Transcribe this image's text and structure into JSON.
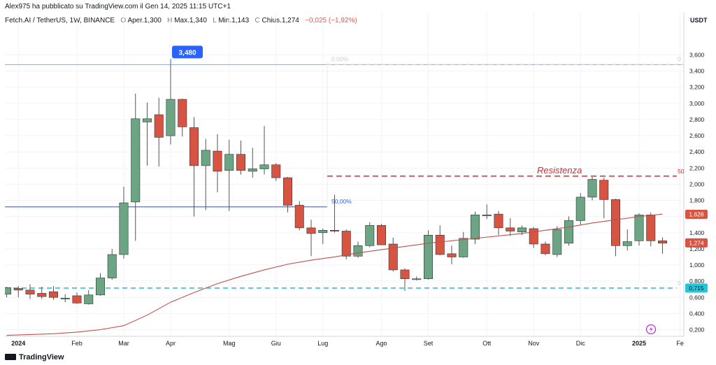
{
  "header": {
    "published": "Alex975 ha pubblicato su TradingView.com il Gen 14, 2025 11:15 UTC+1",
    "symbol": "Fetch.AI / TetherUS, 1W, BINANCE",
    "open_label": "O",
    "open_value": "Aper.1,300",
    "high_label": "H",
    "high_value": "Max.1,340",
    "low_label": "L",
    "low_value": "Min.1,143",
    "close_label": "C",
    "close_value": "Chius.1,274",
    "change": "−0,025 (−1,92%)"
  },
  "footer": {
    "brand": "TradingView"
  },
  "colors": {
    "up": "#6ba583",
    "down": "#d75442",
    "ma": "#c0504d",
    "fib": "#2962ff",
    "resistance": "#d32f2f",
    "support": "#26c6da"
  },
  "chart_data": {
    "type": "candlestick",
    "currency": "USDT",
    "x_labels": [
      {
        "label": "2024",
        "index": 1
      },
      {
        "label": "Feb",
        "index": 6
      },
      {
        "label": "Mar",
        "index": 10
      },
      {
        "label": "Apr",
        "index": 14
      },
      {
        "label": "Mag",
        "index": 19
      },
      {
        "label": "Giu",
        "index": 23
      },
      {
        "label": "Lug",
        "index": 27
      },
      {
        "label": "Ago",
        "index": 32
      },
      {
        "label": "Set",
        "index": 36
      },
      {
        "label": "Ott",
        "index": 41
      },
      {
        "label": "Nov",
        "index": 45
      },
      {
        "label": "Dic",
        "index": 49
      },
      {
        "label": "2025",
        "index": 54
      },
      {
        "label": "Fe",
        "index": 57.5
      }
    ],
    "y_ticks": [
      0.2,
      0.4,
      0.6,
      0.8,
      1.0,
      1.2,
      1.4,
      1.6,
      1.8,
      2.0,
      2.2,
      2.4,
      2.6,
      2.8,
      3.0,
      3.2,
      3.4,
      3.6
    ],
    "y_tick_labels": [
      "0,200",
      "0,400",
      "0,600",
      "0,800",
      "1,000",
      "1,200",
      "1,400",
      "1,600",
      "1,800",
      "2,000",
      "2,200",
      "2,400",
      "2,600",
      "2,800",
      "3,000",
      "3,200",
      "3,400",
      "3,600"
    ],
    "ylim": [
      0.08,
      3.9
    ],
    "candles": [
      {
        "o": 0.64,
        "h": 0.73,
        "l": 0.6,
        "c": 0.72
      },
      {
        "o": 0.71,
        "h": 0.74,
        "l": 0.6,
        "c": 0.69
      },
      {
        "o": 0.69,
        "h": 0.76,
        "l": 0.58,
        "c": 0.64
      },
      {
        "o": 0.65,
        "h": 0.73,
        "l": 0.58,
        "c": 0.61
      },
      {
        "o": 0.67,
        "h": 0.74,
        "l": 0.57,
        "c": 0.6
      },
      {
        "o": 0.59,
        "h": 0.64,
        "l": 0.54,
        "c": 0.59
      },
      {
        "o": 0.62,
        "h": 0.66,
        "l": 0.52,
        "c": 0.53
      },
      {
        "o": 0.52,
        "h": 0.69,
        "l": 0.51,
        "c": 0.63
      },
      {
        "o": 0.63,
        "h": 0.9,
        "l": 0.62,
        "c": 0.84
      },
      {
        "o": 0.84,
        "h": 1.2,
        "l": 0.82,
        "c": 1.13
      },
      {
        "o": 1.13,
        "h": 1.97,
        "l": 1.08,
        "c": 1.77
      },
      {
        "o": 1.78,
        "h": 3.12,
        "l": 1.3,
        "c": 2.81
      },
      {
        "o": 2.77,
        "h": 3.01,
        "l": 2.23,
        "c": 2.81
      },
      {
        "o": 2.86,
        "h": 3.07,
        "l": 2.22,
        "c": 2.58
      },
      {
        "o": 2.6,
        "h": 3.48,
        "l": 2.49,
        "c": 3.05
      },
      {
        "o": 3.05,
        "h": 3.06,
        "l": 2.59,
        "c": 2.71
      },
      {
        "o": 2.7,
        "h": 2.83,
        "l": 1.6,
        "c": 2.23
      },
      {
        "o": 2.23,
        "h": 2.56,
        "l": 1.68,
        "c": 2.42
      },
      {
        "o": 2.41,
        "h": 2.62,
        "l": 1.9,
        "c": 2.16
      },
      {
        "o": 2.17,
        "h": 2.55,
        "l": 1.67,
        "c": 2.37
      },
      {
        "o": 2.37,
        "h": 2.54,
        "l": 2.12,
        "c": 2.17
      },
      {
        "o": 2.16,
        "h": 2.45,
        "l": 2.08,
        "c": 2.19
      },
      {
        "o": 2.19,
        "h": 2.72,
        "l": 2.12,
        "c": 2.24
      },
      {
        "o": 2.24,
        "h": 2.26,
        "l": 2.04,
        "c": 2.08
      },
      {
        "o": 2.08,
        "h": 2.09,
        "l": 1.65,
        "c": 1.74
      },
      {
        "o": 1.74,
        "h": 1.79,
        "l": 1.43,
        "c": 1.46
      },
      {
        "o": 1.46,
        "h": 1.56,
        "l": 1.11,
        "c": 1.39
      },
      {
        "o": 1.4,
        "h": 1.45,
        "l": 1.26,
        "c": 1.43
      },
      {
        "o": 1.43,
        "h": 1.87,
        "l": 1.4,
        "c": 1.42
      },
      {
        "o": 1.42,
        "h": 1.44,
        "l": 1.07,
        "c": 1.11
      },
      {
        "o": 1.11,
        "h": 1.29,
        "l": 1.09,
        "c": 1.24
      },
      {
        "o": 1.24,
        "h": 1.53,
        "l": 1.22,
        "c": 1.49
      },
      {
        "o": 1.49,
        "h": 1.51,
        "l": 1.25,
        "c": 1.25
      },
      {
        "o": 1.26,
        "h": 1.34,
        "l": 0.92,
        "c": 0.94
      },
      {
        "o": 0.94,
        "h": 0.96,
        "l": 0.68,
        "c": 0.83
      },
      {
        "o": 0.83,
        "h": 0.86,
        "l": 0.81,
        "c": 0.83
      },
      {
        "o": 0.83,
        "h": 1.43,
        "l": 0.82,
        "c": 1.37
      },
      {
        "o": 1.37,
        "h": 1.49,
        "l": 1.12,
        "c": 1.13
      },
      {
        "o": 1.14,
        "h": 1.24,
        "l": 1.01,
        "c": 1.1
      },
      {
        "o": 1.1,
        "h": 1.41,
        "l": 1.09,
        "c": 1.33
      },
      {
        "o": 1.32,
        "h": 1.66,
        "l": 1.26,
        "c": 1.62
      },
      {
        "o": 1.62,
        "h": 1.75,
        "l": 1.57,
        "c": 1.62
      },
      {
        "o": 1.63,
        "h": 1.67,
        "l": 1.37,
        "c": 1.46
      },
      {
        "o": 1.46,
        "h": 1.58,
        "l": 1.36,
        "c": 1.42
      },
      {
        "o": 1.41,
        "h": 1.49,
        "l": 1.37,
        "c": 1.46
      },
      {
        "o": 1.45,
        "h": 1.47,
        "l": 1.21,
        "c": 1.26
      },
      {
        "o": 1.26,
        "h": 1.29,
        "l": 1.12,
        "c": 1.14
      },
      {
        "o": 1.13,
        "h": 1.48,
        "l": 1.1,
        "c": 1.44
      },
      {
        "o": 1.27,
        "h": 1.6,
        "l": 1.24,
        "c": 1.55
      },
      {
        "o": 1.55,
        "h": 1.89,
        "l": 1.5,
        "c": 1.84
      },
      {
        "o": 1.84,
        "h": 2.09,
        "l": 1.8,
        "c": 2.06
      },
      {
        "o": 2.05,
        "h": 2.08,
        "l": 1.58,
        "c": 1.81
      },
      {
        "o": 1.81,
        "h": 1.82,
        "l": 1.11,
        "c": 1.24
      },
      {
        "o": 1.24,
        "h": 1.44,
        "l": 1.18,
        "c": 1.29
      },
      {
        "o": 1.3,
        "h": 1.64,
        "l": 1.24,
        "c": 1.62
      },
      {
        "o": 1.62,
        "h": 1.65,
        "l": 1.23,
        "c": 1.3
      },
      {
        "o": 1.3,
        "h": 1.34,
        "l": 1.14,
        "c": 1.27
      }
    ],
    "moving_average": [
      {
        "i": 0,
        "v": 0.13
      },
      {
        "i": 2,
        "v": 0.14
      },
      {
        "i": 4,
        "v": 0.15
      },
      {
        "i": 6,
        "v": 0.17
      },
      {
        "i": 8,
        "v": 0.2
      },
      {
        "i": 10,
        "v": 0.25
      },
      {
        "i": 12,
        "v": 0.38
      },
      {
        "i": 14,
        "v": 0.54
      },
      {
        "i": 16,
        "v": 0.66
      },
      {
        "i": 18,
        "v": 0.77
      },
      {
        "i": 20,
        "v": 0.86
      },
      {
        "i": 22,
        "v": 0.94
      },
      {
        "i": 24,
        "v": 1.01
      },
      {
        "i": 26,
        "v": 1.06
      },
      {
        "i": 28,
        "v": 1.1
      },
      {
        "i": 30,
        "v": 1.15
      },
      {
        "i": 32,
        "v": 1.19
      },
      {
        "i": 34,
        "v": 1.23
      },
      {
        "i": 36,
        "v": 1.27
      },
      {
        "i": 38,
        "v": 1.3
      },
      {
        "i": 40,
        "v": 1.33
      },
      {
        "i": 42,
        "v": 1.36
      },
      {
        "i": 44,
        "v": 1.39
      },
      {
        "i": 46,
        "v": 1.43
      },
      {
        "i": 48,
        "v": 1.47
      },
      {
        "i": 50,
        "v": 1.52
      },
      {
        "i": 52,
        "v": 1.56
      },
      {
        "i": 54,
        "v": 1.6
      },
      {
        "i": 56,
        "v": 1.63
      }
    ],
    "annotations": {
      "high_label": "3,480",
      "high_value": 3.48,
      "high_index": 14,
      "fib_top_label": "0,00%",
      "fib_top_value": 3.48,
      "fib_mid_label": "50,00%",
      "fib_mid_value": 1.72,
      "fib_right_label": "50",
      "fib_low_label": "0",
      "resistance_label": "Resistenza",
      "resistance_value": 2.1,
      "support_value": 0.715
    },
    "price_badges": [
      {
        "label": "1,628",
        "value": 1.628,
        "color": "#d75442"
      },
      {
        "label": "1,274",
        "value": 1.274,
        "color": "#d75442"
      },
      {
        "label": "0,715",
        "value": 0.715,
        "color": "#26c6da"
      }
    ]
  }
}
